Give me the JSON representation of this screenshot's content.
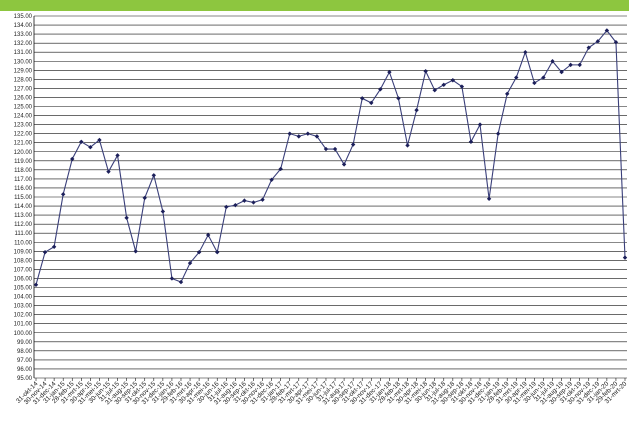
{
  "header": {
    "bar_color": "#8dc63f"
  },
  "chart_data": {
    "type": "line",
    "title": "",
    "xlabel": "",
    "ylabel": "",
    "ylim": [
      95,
      135
    ],
    "y_step": 1,
    "grid": true,
    "legend": "none",
    "line_color": "#3a3f7a",
    "marker_color": "#1c1f5a",
    "categories": [
      "31-okt-14",
      "30-nov-14",
      "31-dec-14",
      "31-jan-15",
      "28-feb-15",
      "31-mrt-15",
      "30-apr-15",
      "31-mei-15",
      "30-jun-15",
      "31-jul-15",
      "31-aug-15",
      "30-sep-15",
      "31-okt-15",
      "30-nov-15",
      "31-dec-15",
      "31-jan-16",
      "29-feb-16",
      "31-mrt-16",
      "30-apr-16",
      "31-mei-16",
      "30-jun-16",
      "31-jul-16",
      "31-aug-16",
      "30-sep-16",
      "31-okt-16",
      "30-nov-16",
      "31-dec-16",
      "31-jan-17",
      "28-feb-17",
      "31-mrt-17",
      "30-apr-17",
      "31-mei-17",
      "30-jun-17",
      "31-jul-17",
      "31-aug-17",
      "30-sep-17",
      "31-okt-17",
      "30-nov-17",
      "31-dec-17",
      "31-jan-18",
      "28-feb-18",
      "31-mrt-18",
      "30-apr-18",
      "31-mei-18",
      "30-jun-18",
      "31-jul-18",
      "31-aug-18",
      "30-sep-18",
      "31-okt-18",
      "30-nov-18",
      "31-dec-18",
      "31-jan-19",
      "28-feb-19",
      "31-mrt-19",
      "30-apr-19",
      "31-mei-19",
      "30-jun-19",
      "31-jul-19",
      "31-aug-19",
      "30-sep-19",
      "31-okt-19",
      "30-nov-19",
      "31-dec-19",
      "31-jan-20",
      "29-feb-20",
      "31-mrt-20"
    ],
    "values": [
      105.3,
      108.9,
      109.5,
      115.3,
      119.2,
      121.1,
      120.5,
      121.3,
      117.8,
      119.6,
      112.7,
      109.0,
      114.9,
      117.4,
      113.4,
      106.0,
      105.6,
      107.7,
      108.9,
      110.8,
      108.9,
      113.9,
      114.1,
      114.6,
      114.4,
      114.7,
      116.9,
      118.1,
      122.0,
      121.7,
      122.0,
      121.7,
      120.3,
      120.3,
      118.6,
      120.8,
      125.9,
      125.4,
      126.9,
      128.8,
      125.9,
      120.7,
      124.6,
      128.9,
      126.8,
      127.4,
      127.9,
      127.2,
      121.1,
      123.0,
      114.8,
      122.0,
      126.4,
      128.2,
      131.0,
      127.6,
      128.2,
      130.0,
      128.8,
      129.6,
      129.6,
      131.5,
      132.2,
      133.4,
      132.1,
      108.3
    ]
  }
}
